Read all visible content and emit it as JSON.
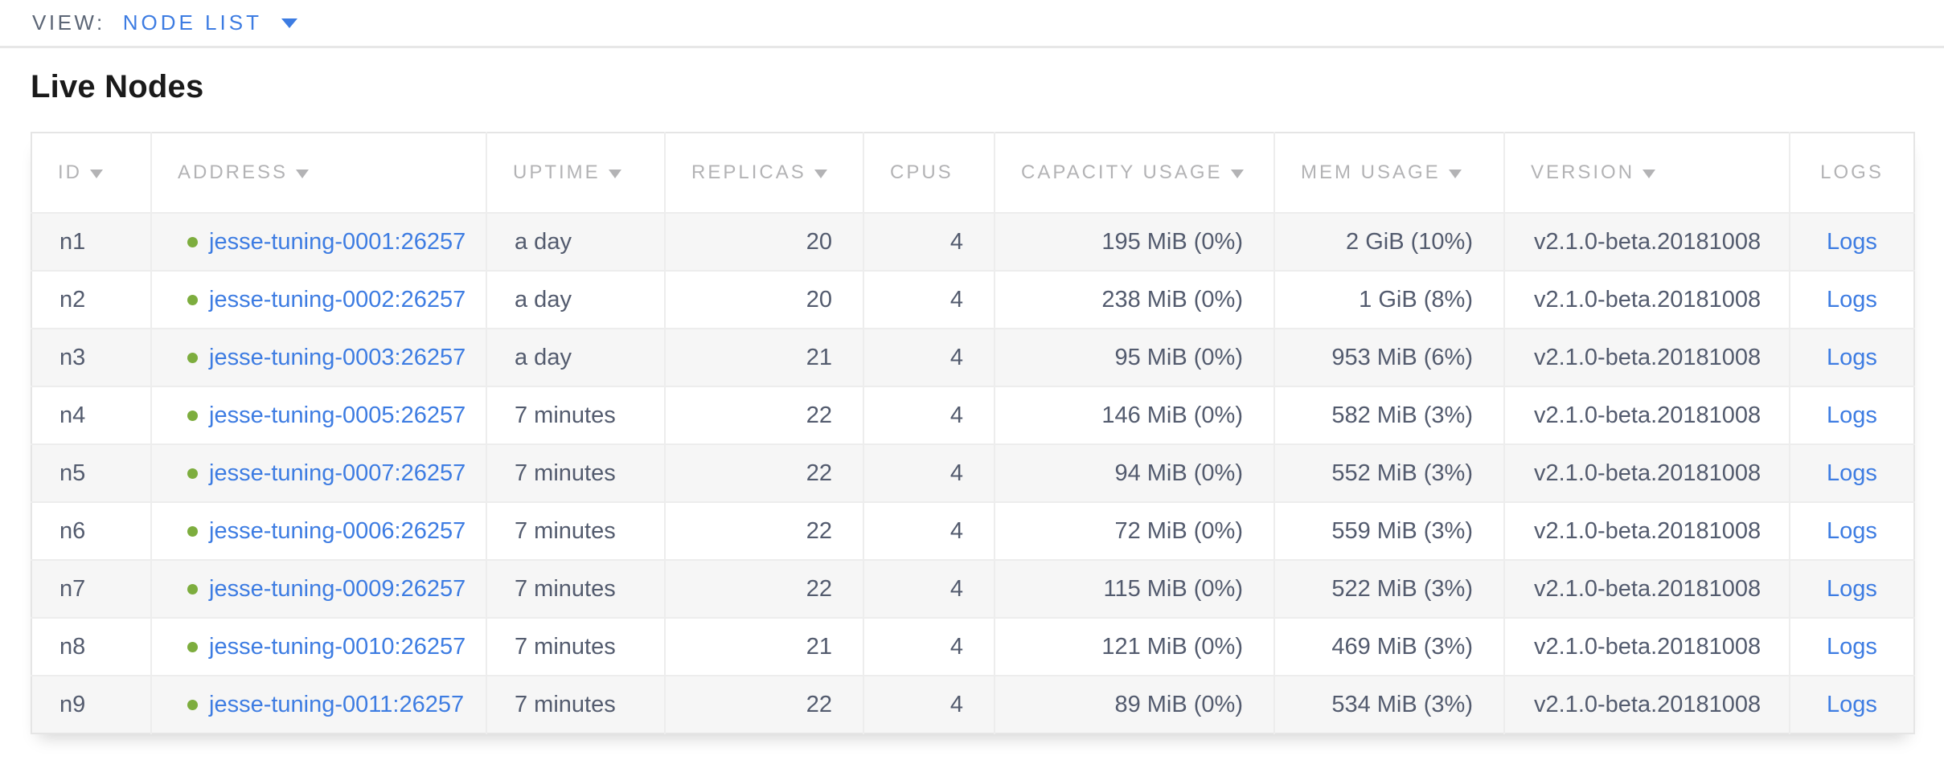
{
  "view_bar": {
    "label": "VIEW:",
    "selected_view": "NODE LIST"
  },
  "page": {
    "title": "Live Nodes"
  },
  "table": {
    "columns": [
      {
        "label": "ID",
        "sortable": true
      },
      {
        "label": "ADDRESS",
        "sortable": true
      },
      {
        "label": "UPTIME",
        "sortable": true
      },
      {
        "label": "REPLICAS",
        "sortable": true
      },
      {
        "label": "CPUS",
        "sortable": false
      },
      {
        "label": "CAPACITY USAGE",
        "sortable": true
      },
      {
        "label": "MEM USAGE",
        "sortable": true
      },
      {
        "label": "VERSION",
        "sortable": true
      },
      {
        "label": "LOGS",
        "sortable": false
      }
    ],
    "rows": [
      {
        "id": "n1",
        "status": "live",
        "address": "jesse-tuning-0001:26257",
        "uptime": "a day",
        "replicas": "20",
        "cpus": "4",
        "capacity_usage": "195 MiB (0%)",
        "mem_usage": "2 GiB (10%)",
        "version": "v2.1.0-beta.20181008",
        "logs_label": "Logs"
      },
      {
        "id": "n2",
        "status": "live",
        "address": "jesse-tuning-0002:26257",
        "uptime": "a day",
        "replicas": "20",
        "cpus": "4",
        "capacity_usage": "238 MiB (0%)",
        "mem_usage": "1 GiB (8%)",
        "version": "v2.1.0-beta.20181008",
        "logs_label": "Logs"
      },
      {
        "id": "n3",
        "status": "live",
        "address": "jesse-tuning-0003:26257",
        "uptime": "a day",
        "replicas": "21",
        "cpus": "4",
        "capacity_usage": "95 MiB (0%)",
        "mem_usage": "953 MiB (6%)",
        "version": "v2.1.0-beta.20181008",
        "logs_label": "Logs"
      },
      {
        "id": "n4",
        "status": "live",
        "address": "jesse-tuning-0005:26257",
        "uptime": "7 minutes",
        "replicas": "22",
        "cpus": "4",
        "capacity_usage": "146 MiB (0%)",
        "mem_usage": "582 MiB (3%)",
        "version": "v2.1.0-beta.20181008",
        "logs_label": "Logs"
      },
      {
        "id": "n5",
        "status": "live",
        "address": "jesse-tuning-0007:26257",
        "uptime": "7 minutes",
        "replicas": "22",
        "cpus": "4",
        "capacity_usage": "94 MiB (0%)",
        "mem_usage": "552 MiB (3%)",
        "version": "v2.1.0-beta.20181008",
        "logs_label": "Logs"
      },
      {
        "id": "n6",
        "status": "live",
        "address": "jesse-tuning-0006:26257",
        "uptime": "7 minutes",
        "replicas": "22",
        "cpus": "4",
        "capacity_usage": "72 MiB (0%)",
        "mem_usage": "559 MiB (3%)",
        "version": "v2.1.0-beta.20181008",
        "logs_label": "Logs"
      },
      {
        "id": "n7",
        "status": "live",
        "address": "jesse-tuning-0009:26257",
        "uptime": "7 minutes",
        "replicas": "22",
        "cpus": "4",
        "capacity_usage": "115 MiB (0%)",
        "mem_usage": "522 MiB (3%)",
        "version": "v2.1.0-beta.20181008",
        "logs_label": "Logs"
      },
      {
        "id": "n8",
        "status": "live",
        "address": "jesse-tuning-0010:26257",
        "uptime": "7 minutes",
        "replicas": "21",
        "cpus": "4",
        "capacity_usage": "121 MiB (0%)",
        "mem_usage": "469 MiB (3%)",
        "version": "v2.1.0-beta.20181008",
        "logs_label": "Logs"
      },
      {
        "id": "n9",
        "status": "live",
        "address": "jesse-tuning-0011:26257",
        "uptime": "7 minutes",
        "replicas": "22",
        "cpus": "4",
        "capacity_usage": "89 MiB (0%)",
        "mem_usage": "534 MiB (3%)",
        "version": "v2.1.0-beta.20181008",
        "logs_label": "Logs"
      }
    ]
  },
  "colors": {
    "link_blue": "#3d7ce2",
    "live_status_green": "#7dad3e",
    "header_gray": "#b3b3b5",
    "cell_text": "#535b6e",
    "alt_row_bg": "#f6f6f6",
    "border": "#ededed"
  }
}
